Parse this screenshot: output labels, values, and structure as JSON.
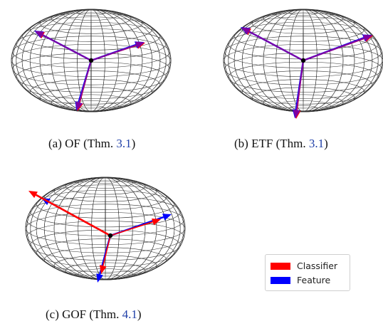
{
  "colors": {
    "classifier": "#ff0000",
    "feature": "#0000ff",
    "overlap": "#8000a0",
    "grid": "#000000"
  },
  "panels": [
    {
      "id": "a",
      "caption_prefix": "(a)",
      "caption_name": "OF",
      "caption_open": "(Thm. ",
      "caption_ref": "3.1",
      "caption_close": ")",
      "overlap": true
    },
    {
      "id": "b",
      "caption_prefix": "(b)",
      "caption_name": "ETF",
      "caption_open": "(Thm. ",
      "caption_ref": "3.1",
      "caption_close": ")",
      "overlap": true
    },
    {
      "id": "c",
      "caption_prefix": "(c)",
      "caption_name": "GOF",
      "caption_open": "(Thm. ",
      "caption_ref": "4.1",
      "caption_close": ")",
      "overlap": false
    }
  ],
  "legend": {
    "classifier_label": "Classifier",
    "feature_label": "Feature"
  }
}
